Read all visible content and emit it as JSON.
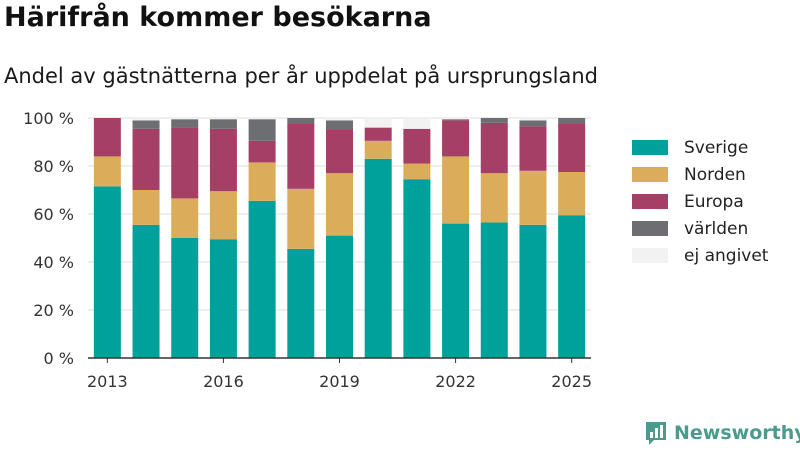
{
  "title": "Härifrån kommer besökarna",
  "subtitle": "Andel av gästnätterna per år uppdelat på ursprungsland",
  "brand": "Newsworthy",
  "chart_data": {
    "type": "bar",
    "stacked": true,
    "categories": [
      "2013",
      "2014",
      "2015",
      "2016",
      "2017",
      "2018",
      "2019",
      "2020",
      "2021",
      "2022",
      "2023",
      "2024",
      "2025"
    ],
    "x_tick_labels": [
      "2013",
      "2016",
      "2019",
      "2022",
      "2025"
    ],
    "y_tick_labels": [
      "0 %",
      "20 %",
      "40 %",
      "60 %",
      "80 %",
      "100 %"
    ],
    "ylim": [
      0,
      100
    ],
    "y_ticks": [
      0,
      20,
      40,
      60,
      80,
      100
    ],
    "legend_position": "right",
    "series": [
      {
        "name": "Sverige",
        "color": "#00a19a",
        "values": [
          71.5,
          55.5,
          50,
          49.5,
          65.5,
          45.5,
          51,
          83,
          74.5,
          56,
          56.5,
          55.5,
          59.5
        ]
      },
      {
        "name": "Norden",
        "color": "#dbad5a",
        "values": [
          12.5,
          14.5,
          16.5,
          20,
          16,
          25,
          26,
          7.5,
          6.5,
          28,
          20.5,
          22.5,
          18
        ]
      },
      {
        "name": "Europa",
        "color": "#a63f66",
        "values": [
          16,
          25.5,
          29.5,
          26,
          9,
          27,
          18,
          5.5,
          14.5,
          15,
          21,
          18.5,
          20
        ]
      },
      {
        "name": "världen",
        "color": "#6d6e72",
        "values": [
          0,
          3.5,
          3.5,
          4,
          9,
          2.5,
          4,
          0,
          0,
          0.5,
          2,
          2.5,
          2.5
        ]
      },
      {
        "name": "ej angivet",
        "color": "#f2f2f2",
        "values": [
          0,
          1,
          0.5,
          0.5,
          0.5,
          0,
          1,
          4,
          4.5,
          0.5,
          0,
          1,
          0
        ]
      }
    ]
  }
}
